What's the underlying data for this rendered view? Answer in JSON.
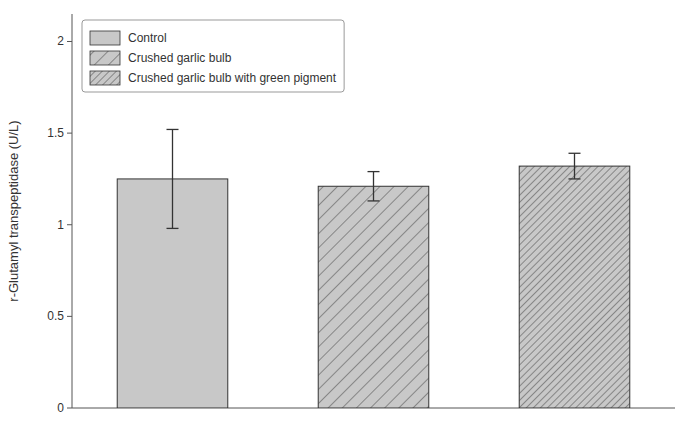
{
  "chart_data": {
    "type": "bar",
    "categories": [
      "Control",
      "Crushed garlic bulb",
      "Crushed garlic bulb with green pigment"
    ],
    "values": [
      1.25,
      1.21,
      1.32
    ],
    "errors": [
      0.27,
      0.08,
      0.07
    ],
    "color": "#c8c8c8",
    "ylabel": "r-Glutamyl transpeptidase (U/L)",
    "ylim": [
      0.0,
      2.15
    ],
    "yticks": [
      0.0,
      0.5,
      1.0,
      1.5,
      2.0
    ],
    "legend": "upper left",
    "tick_labels": "y"
  }
}
